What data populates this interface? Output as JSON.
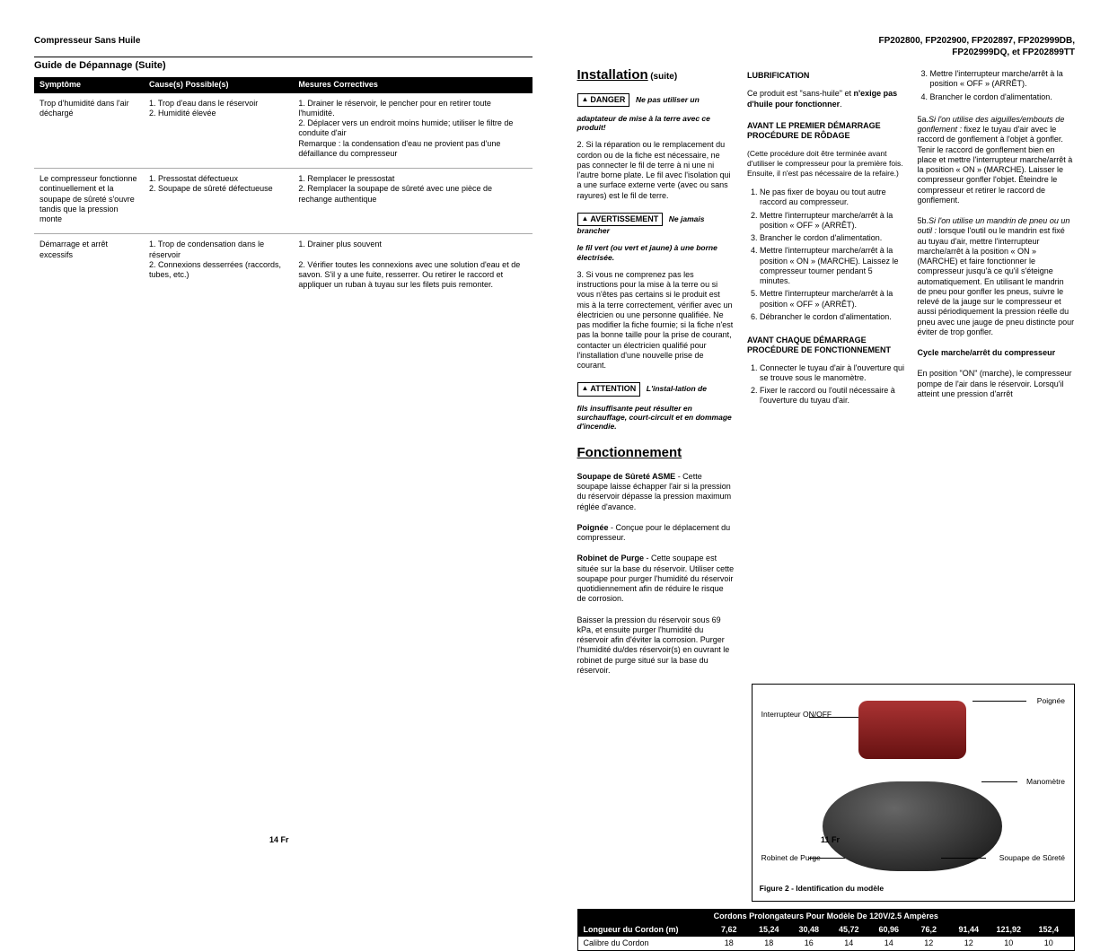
{
  "header_left": "Compresseur Sans Huile",
  "header_right_line1": "FP202800, FP202900, FP202897, FP202999DB,",
  "header_right_line2": "FP202999DQ, et FP202899TT",
  "tg_title": "Guide de Dépannage (Suite)",
  "tg_cols": {
    "c1": "Symptôme",
    "c2": "Cause(s) Possible(s)",
    "c3": "Mesures Correctives"
  },
  "tg_rows": [
    {
      "sym": "Trop d'humidité dans l'air déchargé",
      "cause": "1. Trop d'eau dans le réservoir\n2. Humidité élevée",
      "fix": "1. Drainer le réservoir, le pencher pour en retirer toute l'humidité.\n2. Déplacer vers un endroit moins humide; utiliser le filtre de conduite d'air\nRemarque : la condensation d'eau ne provient pas d'une défaillance du compresseur"
    },
    {
      "sym": "Le compresseur fonctionne continuellement et la soupape de sûreté s'ouvre tandis que la pression monte",
      "cause": "1. Pressostat défectueux\n2. Soupape de sûreté défectueuse",
      "fix": "1. Remplacer le pressostat\n2. Remplacer la soupape de sûreté avec une pièce de rechange authentique"
    },
    {
      "sym": "Démarrage et arrêt excessifs",
      "cause": "1. Trop de condensation dans le réservoir\n2. Connexions desserrées (raccords, tubes, etc.)",
      "fix": "1. Drainer plus souvent\n\n2. Vérifier toutes les connexions avec une solution d'eau et de savon. S'il y a une fuite, resserrer. Ou retirer le raccord et appliquer un ruban à tuyau sur les filets puis remonter."
    }
  ],
  "inst_title": "Installation",
  "suite": "(suite)",
  "danger_label": "DANGER",
  "danger_tail": "Ne pas utiliser un",
  "danger_body": "adaptateur de mise à la terre avec ce produit!",
  "inst_2": "2. Si la réparation ou le remplacement du cordon ou de la fiche est nécessaire, ne pas connecter le fil de terre à ni une ni l'autre borne plate. Le fil avec l'isolation qui a une surface externe verte (avec ou sans rayures) est le fil de terre.",
  "avert_label": "AVERTISSEMENT",
  "avert_tail": "Ne jamais brancher",
  "avert_body": "le fil vert (ou vert et jaune) à une borne électrisée.",
  "inst_3": "3. Si vous ne comprenez pas les instructions pour la mise à la terre ou si vous n'êtes pas certains si le produit est mis à la terre correctement, vérifier avec un électricien ou une personne qualifiée. Ne pas modifier la fiche fournie; si la fiche n'est pas la bonne taille pour la prise de courant, contacter un électricien qualifié pour l'installation d'une nouvelle prise de courant.",
  "att_label": "ATTENTION",
  "att_tail": "L'instal-lation de",
  "att_body": "fils insuffisante peut résulter en surchauffage, court-circuit et en dommage d'incendie.",
  "fonc_title": "Fonctionnement",
  "fonc_p1a": "Soupape de Sûreté ASME",
  "fonc_p1b": " - Cette soupape laisse échapper l'air si la pression du réservoir dépasse la pression maximum réglée d'avance.",
  "fonc_p2a": "Poignée",
  "fonc_p2b": " - Conçue pour le déplacement du compresseur.",
  "fonc_p3a": "Robinet de Purge",
  "fonc_p3b": " - Cette soupape est située sur la base du réservoir. Utiliser cette soupape pour purger l'humidité du réservoir quotidiennement afin de réduire le risque de corrosion.",
  "fonc_p4": "Baisser la pression du réservoir sous 69 kPa, et ensuite purger l'humidité du réservoir afin d'éviter la corrosion. Purger l'humidité du/des réservoir(s) en ouvrant le robinet de purge situé sur la base du réservoir.",
  "lub_head": "LUBRIFICATION",
  "lub_p": "Ce produit est \"sans-huile\" et n'exige pas d'huile pour fonctionner.",
  "lub_bold": "n'exige pas d'huile pour fonctionner",
  "apd_head": "AVANT LE PREMIER DÉMARRAGE PROCÉDURE DE RÔDAGE",
  "apd_note": "(Cette procédure doit être terminée avant d'utiliser le compresseur pour la première fois. Ensuite, il n'est pas nécessaire de la refaire.)",
  "apd_list": [
    "Ne pas fixer de boyau ou tout autre raccord au compresseur.",
    "Mettre l'interrupteur marche/arrêt à la position « OFF » (ARRÊT).",
    "Brancher le cordon d'alimentation.",
    "Mettre l'interrupteur marche/arrêt à la position « ON » (MARCHE). Laissez le compresseur tourner pendant 5 minutes.",
    "Mettre l'interrupteur marche/arrêt à la position « OFF » (ARRÊT).",
    "Débrancher le cordon d'alimentation."
  ],
  "acd_head": "AVANT CHAQUE DÉMARRAGE PROCÉDURE DE FONCTIONNEMENT",
  "acd_list": [
    "Connecter le tuyau d'air à l'ouverture qui se trouve sous le manomètre.",
    "Fixer le raccord ou l'outil nécessaire à l'ouverture du tuyau d'air."
  ],
  "r3_list": [
    "Mettre l'interrupteur marche/arrêt à la position « OFF » (ARRÊT).",
    "Brancher le cordon d'alimentation."
  ],
  "r3_5a_pre": "5a.",
  "r3_5a_em": "Si l'on utilise des aiguilles/embouts de gonflement :",
  "r3_5a_txt": " fixez le tuyau d'air avec le raccord de gonflement à l'objet à gonfler. Tenir le raccord de gonflement bien en place et mettre l'interrupteur marche/arrêt à la position « ON » (MARCHE). Laisser le compresseur gonfler l'objet. Éteindre le compresseur et retirer le raccord de gonflement.",
  "r3_5b_pre": "5b.",
  "r3_5b_em": "Si l'on utilise un mandrin de pneu ou un outil :",
  "r3_5b_txt": " lorsque l'outil ou le mandrin est fixé au tuyau d'air, mettre l'interrupteur marche/arrêt à la position « ON » (MARCHE) et faire fonctionner le compresseur jusqu'à ce qu'il s'éteigne automatiquement. En utilisant le mandrin de pneu pour gonfler les pneus, suivre le relevé de la jauge sur le compresseur et aussi périodiquement la pression réelle du pneu avec une jauge de pneu distincte pour éviter de trop gonfler.",
  "cycle_head": "Cycle marche/arrêt du compresseur",
  "cycle_p": "En position \"ON\" (marche), le compresseur pompe de l'air dans le réservoir. Lorsqu'il atteint une pression d'arrêt",
  "fig_labels": {
    "onoff": "Interrupteur ON/OFF",
    "poignee": "Poignée",
    "mano": "Manomètre",
    "robinet": "Robinet de Purge",
    "soupape": "Soupape de Sûreté"
  },
  "fig_caption": "Figure 2 - Identification du modèle",
  "cord_title": "Cordons Prolongateurs Pour Modèle De 120V/2.5 Ampères",
  "cord_row_label": "Longueur du Cordon (m)",
  "cord_lengths": [
    "7,62",
    "15,24",
    "30,48",
    "45,72",
    "60,96",
    "76,2",
    "91,44",
    "121,92",
    "152,4"
  ],
  "cord_row2_label": "Calibre du Cordon",
  "cord_gauges": [
    "18",
    "18",
    "16",
    "14",
    "14",
    "12",
    "12",
    "10",
    "10"
  ],
  "page_left": "14 Fr",
  "page_right": "11 Fr"
}
